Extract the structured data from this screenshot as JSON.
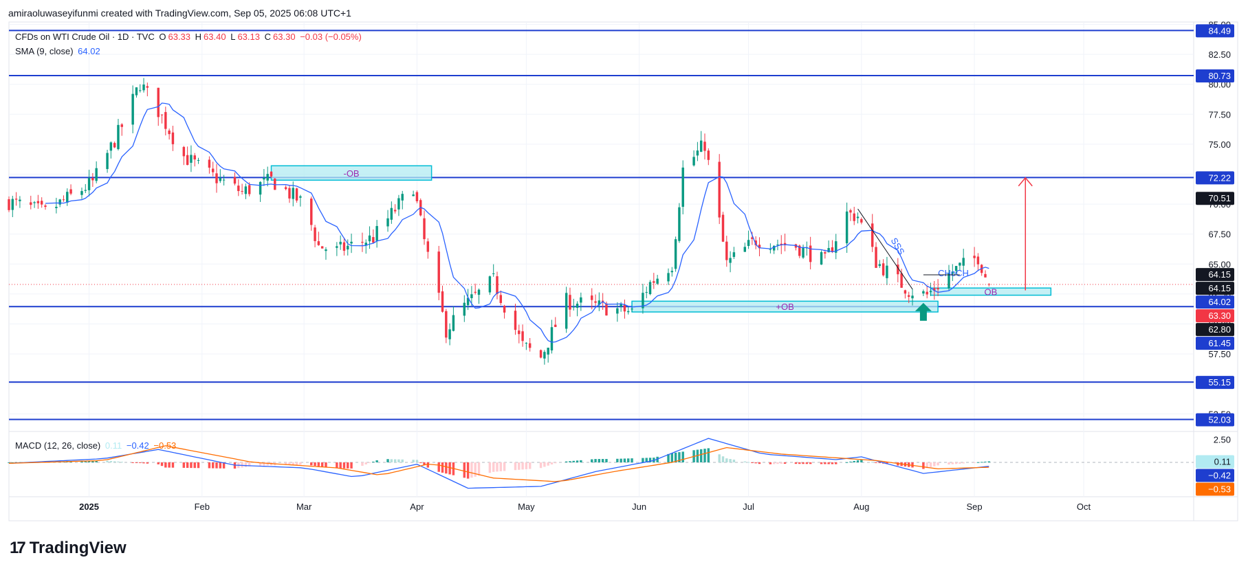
{
  "header": {
    "attribution": "amiraoluwaseyifunmi created with TradingView.com, Sep 05, 2025 06:08 UTC+1"
  },
  "legend": {
    "symbol": "CFDs on WTI Crude Oil · 1D · TVC",
    "open_label": "O",
    "open": "63.33",
    "high_label": "H",
    "high": "63.40",
    "low_label": "L",
    "low": "63.13",
    "close_label": "C",
    "close": "63.30",
    "change": "−0.03 (−0.05%)",
    "sma_label": "SMA (9, close)",
    "sma_value": "64.02",
    "macd_label": "MACD (12, 26, close)",
    "macd_hist": "0.11",
    "macd_value": "−0.42",
    "macd_signal": "−0.53"
  },
  "brand": {
    "logo": "17",
    "name": "TradingView"
  },
  "colors": {
    "up": "#089981",
    "down": "#f23645",
    "sma": "#2962ff",
    "hline": "#1e3ecf",
    "ob_fill": "#b2ebf2",
    "ob_stroke": "#00bcd4",
    "arrow": "#f23645",
    "macd_line": "#2962ff",
    "signal_line": "#ff6d00",
    "hist_up_strong": "#26a69a",
    "hist_up_weak": "#b2dfdb",
    "hist_down_strong": "#ff5252",
    "hist_down_weak": "#ffcdd2",
    "current_price": "#f23645",
    "grid": "#f0f3fa"
  },
  "chart_data": [
    {
      "type": "candlestick",
      "title": "CFDs on WTI Crude Oil · 1D · TVC",
      "x_ticks": [
        "2025",
        "Feb",
        "Mar",
        "Apr",
        "May",
        "Jun",
        "Jul",
        "Aug",
        "Sep",
        "Oct"
      ],
      "y_ticks": [
        52.5,
        55.0,
        57.5,
        60.0,
        62.5,
        65.0,
        67.5,
        70.0,
        72.5,
        75.0,
        77.5,
        80.0,
        82.5,
        85.0
      ],
      "y_tick_labels": [
        "52.50",
        "55.00",
        "57.50",
        "60.00",
        "62.50",
        "65.00",
        "67.50",
        "70.00",
        "72.50",
        "75.00",
        "77.50",
        "80.00",
        "82.50",
        "85.00"
      ],
      "ylim": [
        51.2,
        85.2
      ],
      "xlim": [
        "2024-12-10",
        "2025-10-31"
      ],
      "ohlc_anchors": [
        [
          "2024-12-10",
          70.2
        ],
        [
          "2024-12-20",
          69.3
        ],
        [
          "2025-01-02",
          71.8
        ],
        [
          "2025-01-10",
          76.5
        ],
        [
          "2025-01-15",
          80.1
        ],
        [
          "2025-01-20",
          77.8
        ],
        [
          "2025-01-27",
          74.0
        ],
        [
          "2025-02-03",
          72.5
        ],
        [
          "2025-02-12",
          71.0
        ],
        [
          "2025-02-20",
          72.0
        ],
        [
          "2025-03-01",
          70.0
        ],
        [
          "2025-03-05",
          66.5
        ],
        [
          "2025-03-10",
          66.1
        ],
        [
          "2025-03-20",
          67.2
        ],
        [
          "2025-03-31",
          71.5
        ],
        [
          "2025-04-03",
          66.9
        ],
        [
          "2025-04-09",
          59.5
        ],
        [
          "2025-04-14",
          61.5
        ],
        [
          "2025-04-22",
          63.6
        ],
        [
          "2025-04-30",
          58.2
        ],
        [
          "2025-05-05",
          57.2
        ],
        [
          "2025-05-12",
          61.9
        ],
        [
          "2025-05-20",
          61.5
        ],
        [
          "2025-05-30",
          61.0
        ],
        [
          "2025-06-04",
          63.4
        ],
        [
          "2025-06-10",
          65.0
        ],
        [
          "2025-06-13",
          72.9
        ],
        [
          "2025-06-19",
          75.0
        ],
        [
          "2025-06-23",
          68.5
        ],
        [
          "2025-06-25",
          65.0
        ],
        [
          "2025-07-03",
          67.0
        ],
        [
          "2025-07-14",
          66.5
        ],
        [
          "2025-07-22",
          65.2
        ],
        [
          "2025-07-28",
          69.2
        ],
        [
          "2025-07-31",
          69.0
        ],
        [
          "2025-08-05",
          65.2
        ],
        [
          "2025-08-14",
          62.8
        ],
        [
          "2025-08-19",
          62.4
        ],
        [
          "2025-08-26",
          64.4
        ],
        [
          "2025-09-02",
          65.6
        ],
        [
          "2025-09-05",
          63.3
        ]
      ],
      "sma": {
        "name": "SMA (9, close)",
        "period": 9,
        "last": 64.02
      },
      "horizontal_levels": [
        84.49,
        80.73,
        72.22,
        61.45,
        55.15,
        52.03
      ],
      "price_badges": [
        {
          "label": "84.49",
          "value": 84.49,
          "style": "blue"
        },
        {
          "label": "80.73",
          "value": 80.73,
          "style": "blue"
        },
        {
          "label": "72.22",
          "value": 72.22,
          "style": "blue"
        },
        {
          "label": "70.51",
          "value": 70.51,
          "style": "black"
        },
        {
          "label": "64.15",
          "value": 64.15,
          "style": "black"
        },
        {
          "label": "64.15",
          "value": 64.15,
          "style": "black"
        },
        {
          "label": "64.02",
          "value": 64.02,
          "style": "blue"
        },
        {
          "label": "63.30",
          "value": 63.3,
          "style": "red"
        },
        {
          "label": "62.80",
          "value": 62.8,
          "style": "black"
        },
        {
          "label": "61.45",
          "value": 61.45,
          "style": "blue"
        },
        {
          "label": "55.15",
          "value": 55.15,
          "style": "blue"
        },
        {
          "label": "52.03",
          "value": 52.03,
          "style": "blue"
        }
      ],
      "current_price": 63.3,
      "zones": [
        {
          "label": "-OB",
          "x_from": "2025-02-20",
          "x_to": "2025-04-05",
          "y_from": 72.0,
          "y_to": 73.2
        },
        {
          "label": "+OB",
          "x_from": "2025-05-30",
          "x_to": "2025-08-22",
          "y_from": 61.0,
          "y_to": 61.9
        },
        {
          "label": "OB",
          "x_from": "2025-08-20",
          "x_to": "2025-09-22",
          "y_from": 62.4,
          "y_to": 63.0
        }
      ],
      "annotations": [
        {
          "text": "CHoCH",
          "date": "2025-08-22",
          "price": 64.0
        },
        {
          "text": "SSS",
          "date": "2025-08-09",
          "price": 67.0
        }
      ],
      "target_arrow": {
        "date": "2025-09-15",
        "from": 62.8,
        "to": 72.2
      },
      "up_arrow": {
        "date": "2025-08-18",
        "price": 61.3
      }
    },
    {
      "type": "line",
      "title": "MACD (12, 26, close)",
      "y_ticks": [
        2.5
      ],
      "y_tick_labels": [
        "2.50"
      ],
      "ylim": [
        -3.5,
        3.2
      ],
      "series": [
        {
          "name": "MACD",
          "last": -0.42,
          "anchors": [
            [
              "2024-12-10",
              -0.1
            ],
            [
              "2025-01-05",
              0.4
            ],
            [
              "2025-01-20",
              1.4
            ],
            [
              "2025-02-10",
              -0.3
            ],
            [
              "2025-03-01",
              -0.6
            ],
            [
              "2025-03-15",
              -1.6
            ],
            [
              "2025-04-01",
              -0.2
            ],
            [
              "2025-04-15",
              -2.8
            ],
            [
              "2025-05-05",
              -2.6
            ],
            [
              "2025-05-20",
              -1.0
            ],
            [
              "2025-06-05",
              0.2
            ],
            [
              "2025-06-20",
              2.6
            ],
            [
              "2025-07-05",
              0.9
            ],
            [
              "2025-07-25",
              0.3
            ],
            [
              "2025-08-01",
              0.6
            ],
            [
              "2025-08-18",
              -1.2
            ],
            [
              "2025-09-05",
              -0.42
            ]
          ]
        },
        {
          "name": "Signal",
          "last": -0.53,
          "anchors": [
            [
              "2024-12-10",
              -0.1
            ],
            [
              "2025-01-05",
              0.2
            ],
            [
              "2025-01-22",
              1.8
            ],
            [
              "2025-02-15",
              0.0
            ],
            [
              "2025-03-10",
              -0.6
            ],
            [
              "2025-03-22",
              -1.4
            ],
            [
              "2025-04-05",
              -0.1
            ],
            [
              "2025-04-22",
              -1.7
            ],
            [
              "2025-05-10",
              -2.1
            ],
            [
              "2025-05-25",
              -1.0
            ],
            [
              "2025-06-10",
              0.0
            ],
            [
              "2025-06-25",
              1.6
            ],
            [
              "2025-07-10",
              0.9
            ],
            [
              "2025-08-05",
              0.2
            ],
            [
              "2025-08-22",
              -0.7
            ],
            [
              "2025-09-05",
              -0.53
            ]
          ]
        }
      ],
      "histogram_last": 0.11,
      "price_badges": [
        {
          "label": "0.11",
          "value": 0.11,
          "style": "cyan"
        },
        {
          "label": "−0.42",
          "value": -0.42,
          "style": "blue"
        },
        {
          "label": "−0.53",
          "value": -0.53,
          "style": "orange"
        }
      ]
    }
  ]
}
